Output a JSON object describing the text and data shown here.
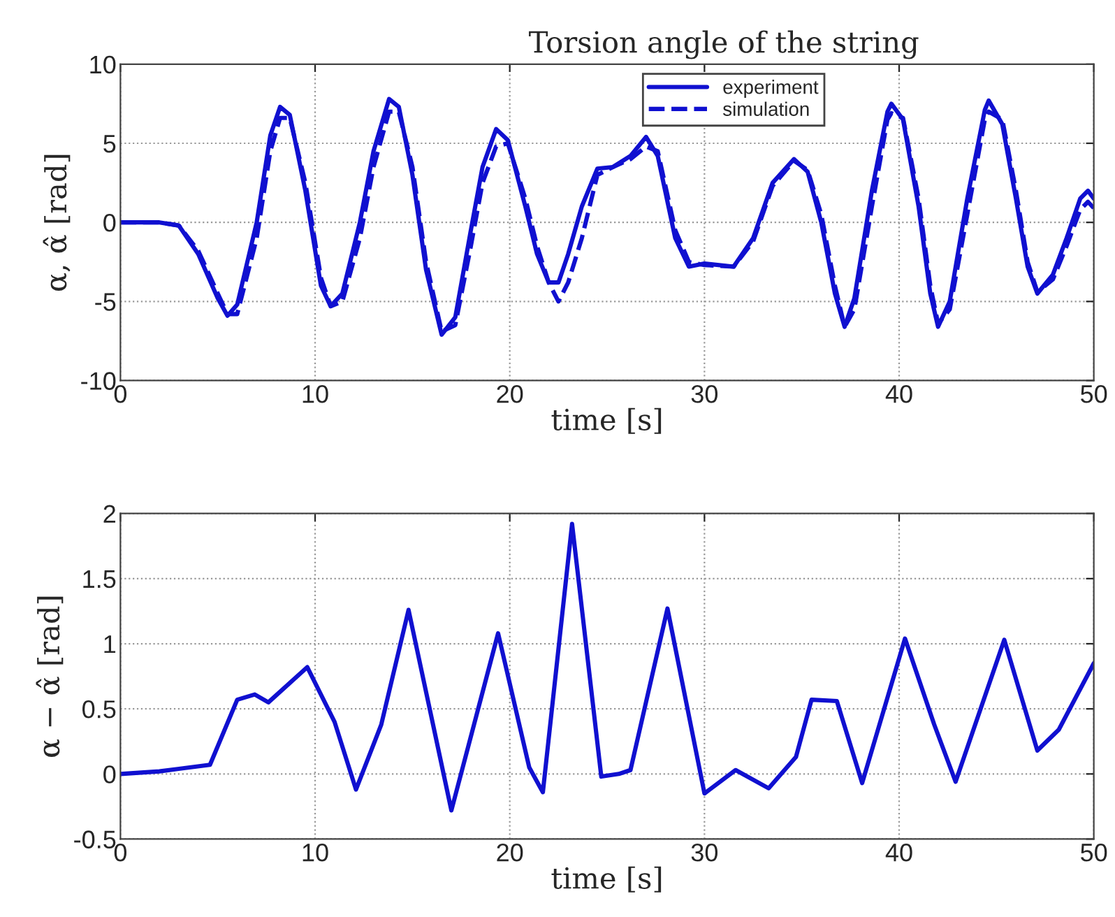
{
  "chart_data": [
    {
      "type": "line",
      "title": "Torsion angle of the string",
      "xlabel": "time [s]",
      "ylabel": "α, α̂ [rad]",
      "xlim": [
        0,
        50
      ],
      "xticks": [
        0,
        10,
        20,
        30,
        40,
        50
      ],
      "ylim": [
        -10,
        10
      ],
      "yticks": [
        -10,
        -5,
        0,
        5,
        10
      ],
      "grid": true,
      "legend": "top",
      "x": [
        0,
        2,
        3,
        4,
        5,
        5.5,
        6,
        7,
        7.7,
        8.2,
        8.7,
        9.5,
        10.3,
        10.8,
        11.4,
        12.3,
        13,
        13.8,
        14.3,
        15,
        15.7,
        16.5,
        17.2,
        18,
        18.6,
        19.3,
        19.9,
        20.8,
        21.4,
        22,
        22.5,
        23,
        23.7,
        24.5,
        25.3,
        26.2,
        27,
        27.6,
        28.5,
        29.2,
        30,
        31.5,
        32.5,
        33.5,
        34.6,
        35.3,
        36,
        36.7,
        37.2,
        37.7,
        38.6,
        39.4,
        39.6,
        40.2,
        41,
        41.6,
        42,
        42.6,
        43.5,
        44.4,
        44.6,
        45.3,
        46,
        46.6,
        47.1,
        47.9,
        48.6,
        49.3,
        49.7,
        50
      ],
      "series": [
        {
          "name": "experiment",
          "color": "#1010d0",
          "line_style": "solid",
          "values": [
            0,
            0,
            -0.2,
            -2,
            -4.8,
            -5.9,
            -5.2,
            0,
            5.5,
            7.3,
            6.8,
            2,
            -4,
            -5.3,
            -4.5,
            0,
            4.5,
            7.8,
            7.3,
            3,
            -3,
            -7.1,
            -6,
            -0.5,
            3.5,
            5.9,
            5.2,
            1,
            -2,
            -3.8,
            -3.8,
            -2,
            1,
            3.4,
            3.5,
            4.2,
            5.4,
            4.2,
            -1,
            -2.8,
            -2.6,
            -2.8,
            -1,
            2.5,
            4,
            3.2,
            0,
            -4.5,
            -6.6,
            -4.8,
            2,
            7,
            7.5,
            6.5,
            1,
            -4.5,
            -6.6,
            -5,
            1.5,
            7.1,
            7.7,
            6.2,
            1.5,
            -2.8,
            -4.5,
            -3.3,
            -1,
            1.5,
            2,
            1.5
          ]
        },
        {
          "name": "simulation",
          "color": "#1010d0",
          "line_style": "dashed",
          "values": [
            0,
            0,
            -0.2,
            -1.8,
            -4.5,
            -5.8,
            -5.8,
            -1,
            4.5,
            6.6,
            6.6,
            2.5,
            -3.5,
            -5.3,
            -5,
            -1,
            3.5,
            7,
            7,
            3.5,
            -2.5,
            -6.9,
            -6.5,
            -1.5,
            2.5,
            4.8,
            5,
            1.5,
            -1.5,
            -3.8,
            -5,
            -3.8,
            -1,
            3,
            3.5,
            4,
            4.8,
            4.5,
            -0.5,
            -2.5,
            -2.7,
            -2.8,
            -1.2,
            2.3,
            3.9,
            3.3,
            0.5,
            -4,
            -6.6,
            -5.5,
            1,
            6.5,
            6.9,
            6.6,
            1.5,
            -4,
            -6.4,
            -5.5,
            0.5,
            6.5,
            7,
            6.5,
            2,
            -2.5,
            -4.4,
            -3.6,
            -1.5,
            0.8,
            1.3,
            0.9
          ]
        }
      ]
    },
    {
      "type": "line",
      "xlabel": "time [s]",
      "ylabel": "α − α̂ [rad]",
      "xlim": [
        0,
        50
      ],
      "xticks": [
        0,
        10,
        20,
        30,
        40,
        50
      ],
      "ylim": [
        -0.5,
        2
      ],
      "yticks": [
        -0.5,
        0,
        0.5,
        1,
        1.5,
        2
      ],
      "grid": true,
      "x": [
        0,
        2,
        4.6,
        6,
        6.9,
        7.6,
        9.6,
        11,
        12.1,
        13.4,
        14.8,
        17,
        19.4,
        21,
        21.7,
        23.2,
        24.7,
        25.6,
        26.2,
        28.1,
        30,
        31.6,
        33.3,
        34.7,
        35.5,
        36.8,
        38.1,
        40.3,
        41.8,
        42.9,
        45.4,
        47.1,
        48.2,
        50
      ],
      "series": [
        {
          "color": "#1010d0",
          "line_style": "solid",
          "values": [
            0,
            0.02,
            0.07,
            0.57,
            0.61,
            0.55,
            0.82,
            0.4,
            -0.12,
            0.38,
            1.26,
            -0.28,
            1.08,
            0.05,
            -0.14,
            1.92,
            -0.02,
            0,
            0.03,
            1.27,
            -0.15,
            0.03,
            -0.11,
            0.13,
            0.57,
            0.56,
            -0.07,
            1.04,
            0.38,
            -0.06,
            1.03,
            0.18,
            0.34,
            0.85
          ]
        }
      ]
    }
  ]
}
